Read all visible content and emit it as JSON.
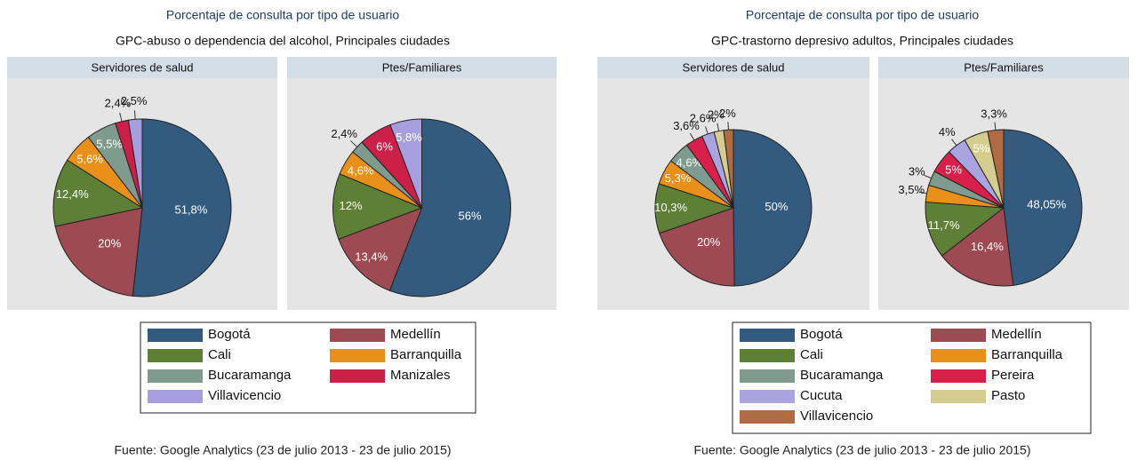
{
  "chart_data": [
    {
      "type": "pie",
      "title": "Porcentaje de consulta por tipo de usuario",
      "subtitle": "GPC-abuso o dependencia del alcohol, Principales ciudades",
      "source": "Fuente: Google Analytics (23 de julio 2013 - 23 de julio 2015)",
      "categories": [
        "Bogotá",
        "Medellín",
        "Cali",
        "Barranquilla",
        "Bucaramanga",
        "Manizales",
        "Villavicencio"
      ],
      "colors": [
        "#335a7f",
        "#9e4a52",
        "#5e7f36",
        "#e8901a",
        "#7f9a8e",
        "#cc2048",
        "#a79ee0"
      ],
      "series": [
        {
          "name": "Servidores de salud",
          "values": [
            51.8,
            20,
            12.4,
            5.6,
            5.5,
            2.4,
            2.5
          ],
          "value_labels": [
            "51,8%",
            "20%",
            "12,4%",
            "5,6%",
            "5,5%",
            "2,4%",
            "2,5%"
          ]
        },
        {
          "name": "Ptes/Familiares",
          "values": [
            56,
            13.4,
            12,
            4.6,
            2.4,
            6,
            5.8
          ],
          "value_labels": [
            "56%",
            "13,4%",
            "12%",
            "4,6%",
            "2,4%",
            "6%",
            "5,8%"
          ]
        }
      ]
    },
    {
      "type": "pie",
      "title": "Porcentaje de consulta por tipo de usuario",
      "subtitle": "GPC-trastorno depresivo adultos, Principales ciudades",
      "source": "Fuente: Google Analytics (23 de julio 2013 - 23 de julio 2015)",
      "categories": [
        "Bogotá",
        "Medellín",
        "Cali",
        "Barranquilla",
        "Bucaramanga",
        "Pereira",
        "Cucuta",
        "Pasto",
        "Villavicencio"
      ],
      "colors": [
        "#335a7f",
        "#9e4a52",
        "#5e7f36",
        "#e8901a",
        "#7f9a8e",
        "#d8204a",
        "#a9a3e0",
        "#d4cd8e",
        "#b06a44"
      ],
      "series": [
        {
          "name": "Servidores de salud",
          "values": [
            50,
            20,
            10.3,
            5.3,
            4.6,
            3.6,
            2.6,
            2,
            2
          ],
          "value_labels": [
            "50%",
            "20%",
            "10,3%",
            "5,3%",
            "4,6%",
            "3,6%",
            "2,6%",
            "2%",
            "2%"
          ]
        },
        {
          "name": "Ptes/Familiares",
          "values": [
            48.05,
            16.4,
            11.7,
            3.5,
            3,
            5,
            4,
            5,
            3.3
          ],
          "value_labels": [
            "48,05%",
            "16,4%",
            "11,7%",
            "3,5%",
            "3%",
            "5%",
            "4%",
            "5%",
            "3,3%"
          ]
        }
      ]
    }
  ]
}
